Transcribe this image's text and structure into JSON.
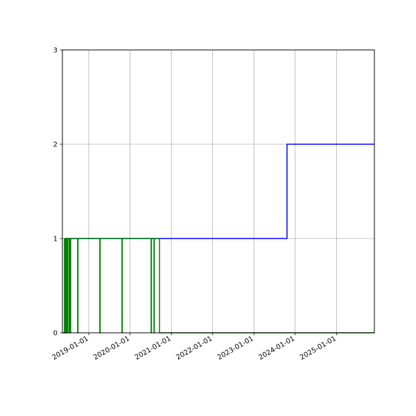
{
  "chart_data": {
    "type": "line",
    "step": "post",
    "title": "",
    "xlabel": "",
    "ylabel": "",
    "xlim": [
      "2018-05-13",
      "2025-12-02"
    ],
    "ylim": [
      0,
      3
    ],
    "grid": true,
    "x_ticks": [
      "2019-01-01",
      "2020-01-01",
      "2021-01-01",
      "2022-01-01",
      "2023-01-01",
      "2024-01-01",
      "2025-01-01"
    ],
    "y_ticks": [
      "0",
      "1",
      "2",
      "3"
    ],
    "series": [
      {
        "color": "#0000ff",
        "points": [
          [
            "2018-05-13",
            0
          ],
          [
            "2018-06-13",
            1
          ],
          [
            "2023-10-21",
            2
          ],
          [
            "2025-12-02",
            2
          ]
        ]
      },
      {
        "color": "#008000",
        "points": [
          [
            "2018-05-25",
            0
          ],
          [
            "2018-05-31",
            1
          ],
          [
            "2018-06-05",
            0
          ],
          [
            "2018-06-08",
            1
          ],
          [
            "2018-06-15",
            0
          ],
          [
            "2018-06-18",
            1
          ],
          [
            "2018-06-25",
            0
          ],
          [
            "2018-06-28",
            1
          ],
          [
            "2018-07-10",
            0
          ],
          [
            "2018-07-13",
            1
          ],
          [
            "2018-07-22",
            0
          ],
          [
            "2018-07-25",
            1
          ],
          [
            "2018-09-25",
            0
          ],
          [
            "2018-09-28",
            1
          ],
          [
            "2019-04-09",
            0
          ],
          [
            "2019-04-12",
            1
          ],
          [
            "2019-10-22",
            0
          ],
          [
            "2019-10-25",
            1
          ],
          [
            "2020-07-06",
            0
          ],
          [
            "2020-07-09",
            1
          ],
          [
            "2020-07-31",
            0
          ],
          [
            "2020-08-03",
            1
          ],
          [
            "2020-09-18",
            0
          ],
          [
            "2025-12-02",
            0
          ]
        ]
      }
    ]
  }
}
